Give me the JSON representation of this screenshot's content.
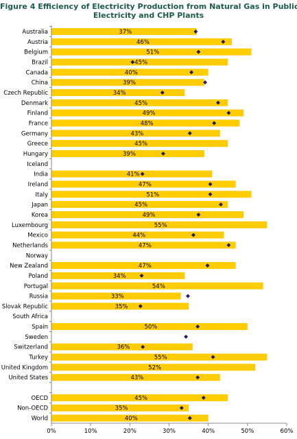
{
  "title_line1": "Figure 4  Efficiency of Electricity Production from Natural Gas in Public",
  "title_line2": "Electricity and CHP Plants",
  "colors": {
    "bar": "#FFCC00",
    "marker": "#1F1F6B",
    "axis": "#888888",
    "title": "#1a5c44"
  },
  "chart_data": {
    "type": "bar",
    "orientation": "horizontal",
    "title": "Figure 4  Efficiency of Electricity Production from Natural Gas in Public Electricity and CHP Plants",
    "xlim": [
      0,
      60
    ],
    "xticks": [
      "0%",
      "10%",
      "20%",
      "30%",
      "40%",
      "50%",
      "60%"
    ],
    "grid": false,
    "categories": [
      "Australia",
      "Austria",
      "Belgium",
      "Brazil",
      "Canada",
      "China",
      "Czech Republic",
      "Denmark",
      "Finland",
      "France",
      "Germany",
      "Greece",
      "Hungary",
      "Iceland",
      "India",
      "Ireland",
      "Italy",
      "Japan",
      "Korea",
      "Luxembourg",
      "Mexico",
      "Netherlands",
      "Norway",
      "New Zealand",
      "Poland",
      "Portugal",
      "Russia",
      "Slovak Republic",
      "South Africa",
      "Spain",
      "Sweden",
      "Switzerland",
      "Turkey",
      "United Kingdom",
      "United States",
      "",
      "OECD",
      "Non-OECD",
      "World"
    ],
    "series": [
      {
        "values": [
          37,
          46,
          51,
          45,
          40,
          39,
          34,
          45,
          49,
          48,
          43,
          45,
          39,
          null,
          41,
          47,
          51,
          45,
          49,
          55,
          44,
          47,
          null,
          47,
          34,
          54,
          33,
          35,
          null,
          50,
          null,
          36,
          55,
          52,
          43,
          null,
          45,
          35,
          40
        ],
        "labels": [
          "37%",
          "46%",
          "51%",
          "45%",
          "40%",
          "39%",
          "34%",
          "45%",
          "49%",
          "48%",
          "43%",
          "45%",
          "39%",
          "",
          "41%",
          "47%",
          "51%",
          "45%",
          "49%",
          "55%",
          "44%",
          "47%",
          "",
          "47%",
          "34%",
          "54%",
          "33%",
          "35%",
          "",
          "50%",
          "",
          "36%",
          "55%",
          "52%",
          "43%",
          "",
          "45%",
          "35%",
          "40%"
        ]
      },
      {
        "values": [
          36.8,
          43.8,
          37.5,
          20.7,
          35.7,
          39.2,
          28.3,
          42.5,
          45.2,
          41.5,
          35.3,
          null,
          28.5,
          null,
          23.2,
          40.5,
          40.5,
          43.2,
          37.5,
          null,
          36.2,
          45.2,
          null,
          39.8,
          23.0,
          null,
          34.8,
          22.7,
          null,
          37.3,
          34.3,
          23.3,
          41.2,
          null,
          37.3,
          null,
          38.8,
          33.2,
          35.3
        ]
      }
    ]
  }
}
